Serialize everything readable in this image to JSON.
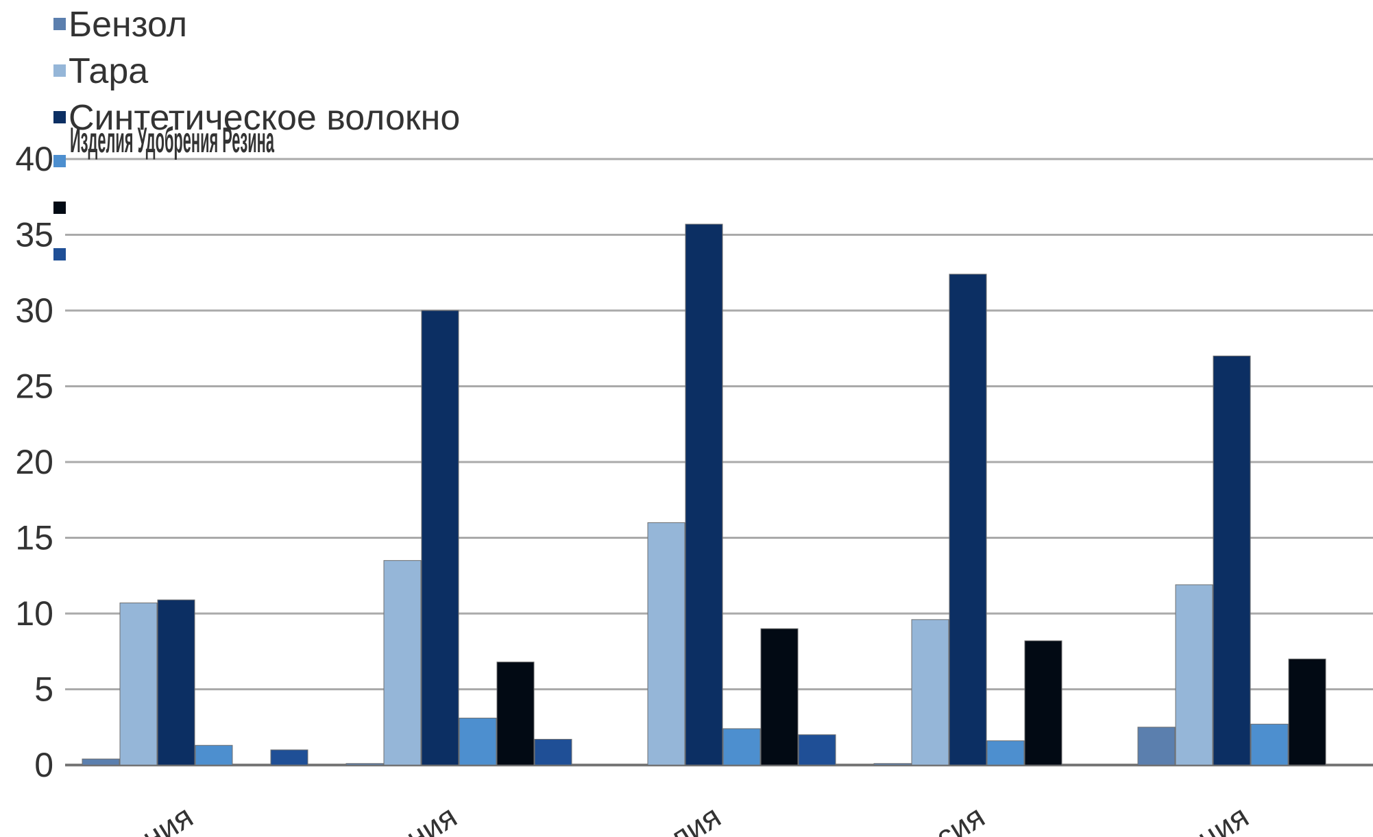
{
  "chart_data": {
    "type": "bar",
    "title": "",
    "xlabel": "",
    "ylabel": "",
    "ylim": [
      0,
      40
    ],
    "y_ticks": [
      0,
      5,
      10,
      15,
      20,
      25,
      30,
      35,
      40
    ],
    "grid": true,
    "legend_position": "top-left",
    "categories": [
      "…ния",
      "…ния",
      "…лия",
      "…сия",
      "…ция"
    ],
    "series": [
      {
        "name": "Бензол",
        "color": "#5b7fae",
        "values": [
          0.4,
          0.1,
          0,
          0.1,
          2.5
        ]
      },
      {
        "name": "Тара",
        "color": "#95b6d8",
        "values": [
          10.7,
          13.5,
          16.0,
          9.6,
          11.9
        ]
      },
      {
        "name": "Синтетическое волокно",
        "color": "#0c2f63",
        "values": [
          10.9,
          30.0,
          35.7,
          32.4,
          27.0
        ]
      },
      {
        "name": "",
        "color": "#4d8fcf",
        "values": [
          1.3,
          3.1,
          2.4,
          1.6,
          2.7
        ]
      },
      {
        "name": "",
        "color": "#020a14",
        "values": [
          0,
          6.8,
          9.0,
          8.2,
          7.0
        ]
      },
      {
        "name": "",
        "color": "#1f4f96",
        "values": [
          1.0,
          1.7,
          2.0,
          0,
          0
        ]
      }
    ],
    "overlapping_legend_text": "Изделия Удобрения Резина"
  }
}
